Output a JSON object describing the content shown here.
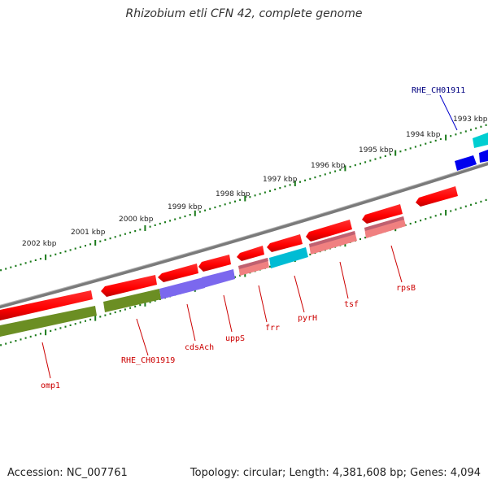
{
  "title": "Rhizobium etli CFN 42, complete genome",
  "footer": {
    "accession": "Accession: NC_007761",
    "summary": "Topology: circular; Length: 4,381,608 bp; Genes: 4,094"
  },
  "ruler": {
    "labels": [
      "2002 kbp",
      "2001 kbp",
      "2000 kbp",
      "1999 kbp",
      "1998 kbp",
      "1997 kbp",
      "1996 kbp",
      "1995 kbp",
      "1994 kbp",
      "1993 kbp"
    ],
    "tick_color": "#1a7a1a"
  },
  "colors": {
    "backbone": "#808080",
    "cds_red": "#ff0000",
    "cds_red_dark": "#cc0000",
    "rna_green": "#6b8e23",
    "pink": "#f08080",
    "rose": "#c06070",
    "violet": "#7b68ee",
    "cyan": "#00ced1",
    "blue": "#0000ee",
    "label_red": "#cc0000",
    "label_blue": "#000080"
  },
  "gene_labels": {
    "omp1": "omp1",
    "rhe_ch01919": "RHE_CH01919",
    "cdsAch": "cdsAch",
    "uppS": "uppS",
    "frr": "frr",
    "pyrH": "pyrH",
    "tsf": "tsf",
    "rpsB": "rpsB",
    "rhe_ch01911": "RHE_CH01911"
  }
}
